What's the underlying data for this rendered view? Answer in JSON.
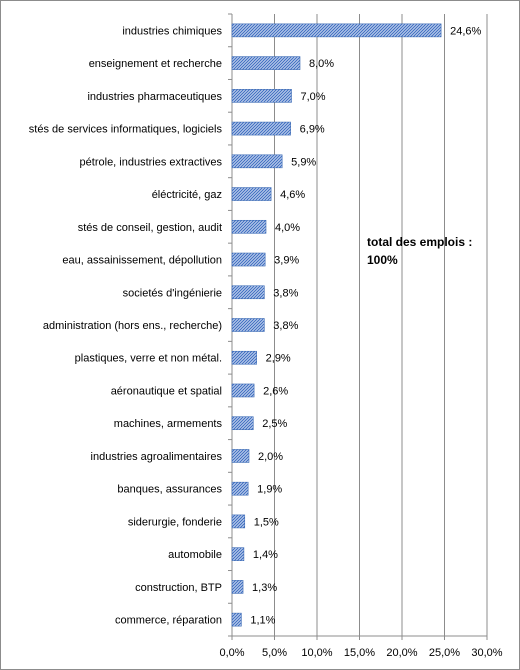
{
  "chart_data": {
    "type": "bar",
    "orientation": "horizontal",
    "categories": [
      "industries chimiques",
      "enseignement et recherche",
      "industries pharmaceutiques",
      "stés de services informatiques, logiciels",
      "pétrole, industries extractives",
      "éléctricité, gaz",
      "stés de conseil, gestion, audit",
      "eau, assainissement, dépollution",
      "societés d'ingénierie",
      "administration (hors ens., recherche)",
      "plastiques, verre et non métal.",
      "aéronautique et spatial",
      "machines, armements",
      "industries agroalimentaires",
      "banques, assurances",
      "siderurgie, fonderie",
      "automobile",
      "construction, BTP",
      "commerce, réparation"
    ],
    "values": [
      24.6,
      8.0,
      7.0,
      6.9,
      5.9,
      4.6,
      4.0,
      3.9,
      3.8,
      3.8,
      2.9,
      2.6,
      2.5,
      2.0,
      1.9,
      1.5,
      1.4,
      1.3,
      1.1
    ],
    "value_labels": [
      "24,6%",
      "8,0%",
      "7,0%",
      "6,9%",
      "5,9%",
      "4,6%",
      "4,0%",
      "3,9%",
      "3,8%",
      "3,8%",
      "2,9%",
      "2,6%",
      "2,5%",
      "2,0%",
      "1,9%",
      "1,5%",
      "1,4%",
      "1,3%",
      "1,1%"
    ],
    "x_ticks": [
      0,
      5,
      10,
      15,
      20,
      25,
      30
    ],
    "x_tick_labels": [
      "0,0%",
      "5,0%",
      "10,0%",
      "15,0%",
      "20,0%",
      "25,0%",
      "30,0%"
    ],
    "xlim": [
      0,
      30
    ],
    "grid": "vertical",
    "legend": "none",
    "bar_color": "#4f81bd",
    "annotation": {
      "line1": "total des emplois :",
      "line2": "100%"
    }
  }
}
